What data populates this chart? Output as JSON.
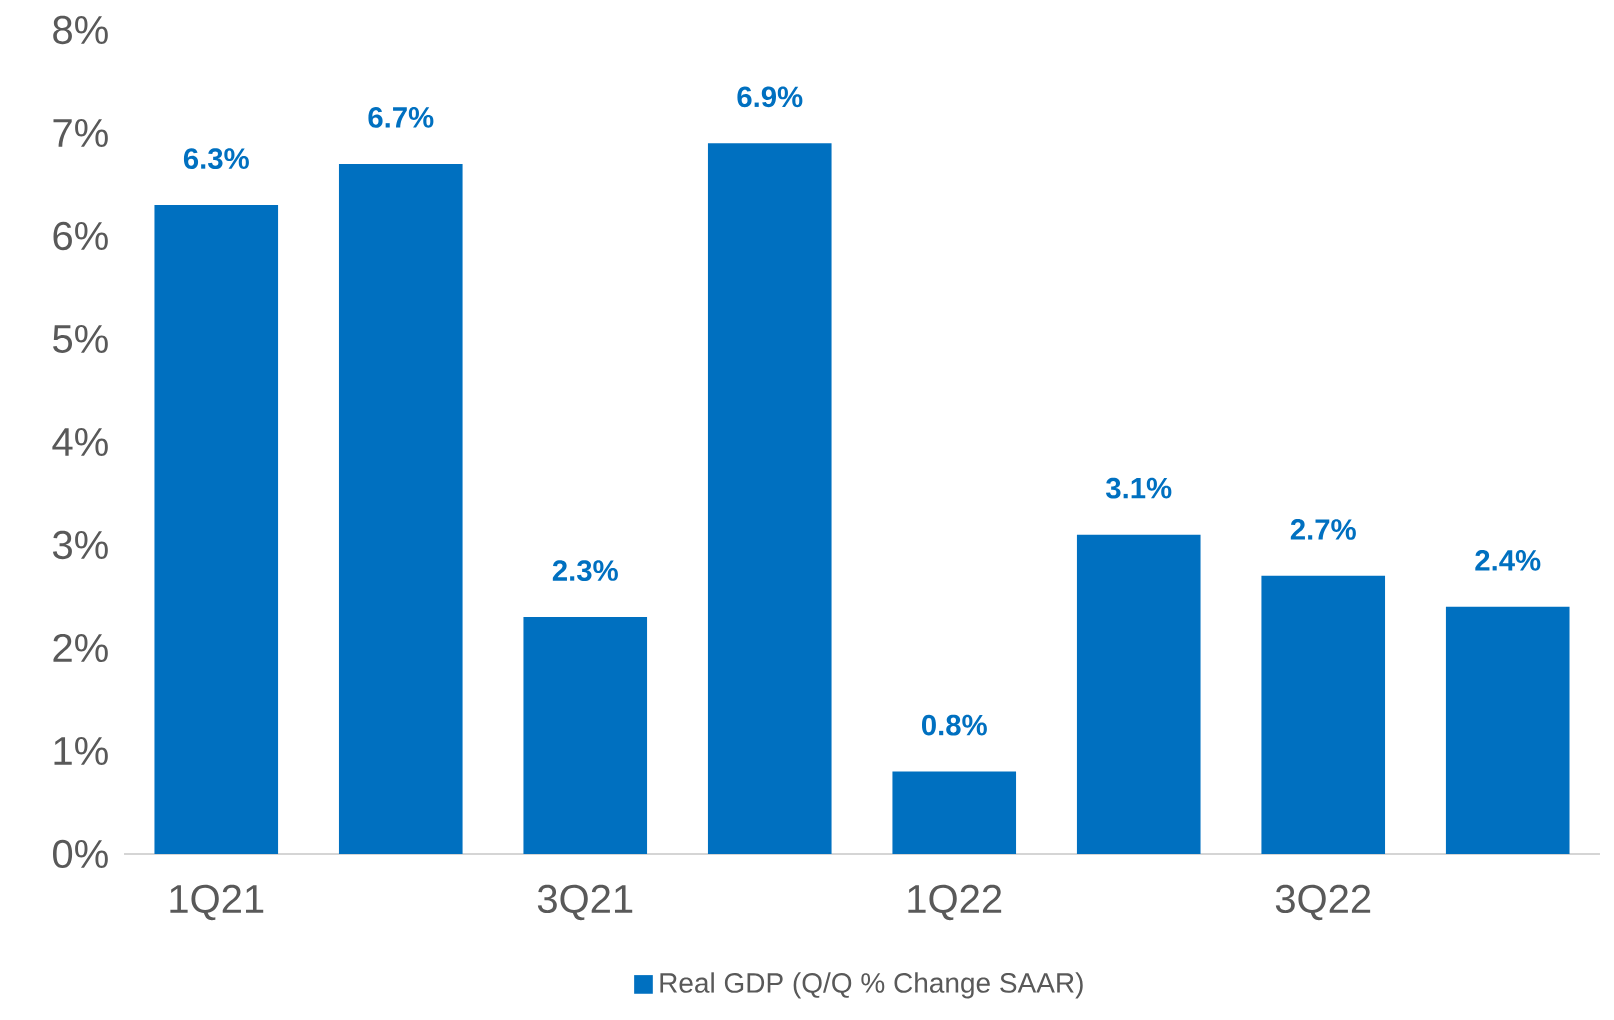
{
  "chart_data": {
    "type": "bar",
    "categories": [
      "1Q21",
      null,
      "3Q21",
      null,
      "1Q22",
      null,
      "3Q22",
      null
    ],
    "series": [
      {
        "name": "Real GDP (Q/Q % Change SAAR)",
        "color": "#0070c0",
        "values": [
          6.3,
          6.7,
          2.3,
          6.9,
          0.8,
          3.1,
          2.7,
          2.4
        ],
        "value_labels": [
          "6.3%",
          "6.7%",
          "2.3%",
          "6.9%",
          "0.8%",
          "3.1%",
          "2.7%",
          "2.4%"
        ]
      }
    ],
    "ylim": [
      0,
      8
    ],
    "yticks": [
      {
        "value": 0,
        "label": "0%"
      },
      {
        "value": 1,
        "label": "1%"
      },
      {
        "value": 2,
        "label": "2%"
      },
      {
        "value": 3,
        "label": "3%"
      },
      {
        "value": 4,
        "label": "4%"
      },
      {
        "value": 5,
        "label": "5%"
      },
      {
        "value": 6,
        "label": "6%"
      },
      {
        "value": 7,
        "label": "7%"
      },
      {
        "value": 8,
        "label": "8%"
      }
    ],
    "legend": "bottom",
    "grid": false
  }
}
